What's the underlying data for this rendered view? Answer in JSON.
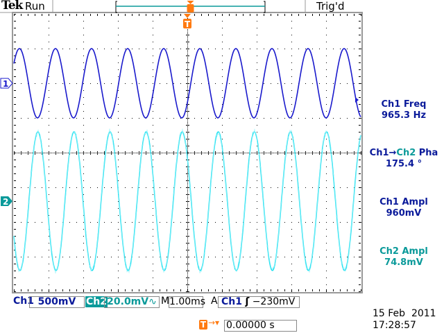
{
  "header": {
    "brand": "Tek",
    "acq_state": "Run",
    "trigger_status": "Trig'd"
  },
  "channels": [
    {
      "marker": "1",
      "color": "#1a1acc"
    },
    {
      "marker": "2",
      "color": "#20e0f0"
    }
  ],
  "measurements": [
    {
      "label": "Ch1 Freq",
      "value": "965.3 Hz",
      "color": "blue"
    },
    {
      "label_a": "Ch1",
      "arrow": "→",
      "label_b": "Ch2",
      "label_c": " Pha",
      "value": "175.4 °",
      "color": "blue"
    },
    {
      "label": "Ch1 Ampl",
      "value": "960mV",
      "color": "blue"
    },
    {
      "label": "Ch2 Ampl",
      "value": "74.8mV",
      "color": "teal"
    }
  ],
  "status_bar": {
    "ch1_label": "Ch1",
    "ch1_scale": "500mV",
    "ch2_label": "Ch2",
    "ch2_scale": "20.0mV",
    "ch2_bw_icon": "bandwidth-limit-icon",
    "ch2_bw_glyph": "∿",
    "timebase_label": "M",
    "timebase": "1.00ms",
    "trigger_mode": "A",
    "trigger_source": "Ch1",
    "trigger_slope_glyph": "ʃ",
    "trigger_level": "−230mV"
  },
  "trigger_position": {
    "marker": "T",
    "arrow": "→▾",
    "value": "0.00000 s",
    "position_percent": 50
  },
  "datetime": {
    "date": "15 Feb  2011",
    "time": "17:28:57"
  },
  "colors": {
    "ch1": "#1a1acc",
    "ch2": "#20e0f0",
    "trigger": "#ff7a10",
    "teal": "#0a9a9a",
    "label_blue": "#0a1a9a"
  }
}
